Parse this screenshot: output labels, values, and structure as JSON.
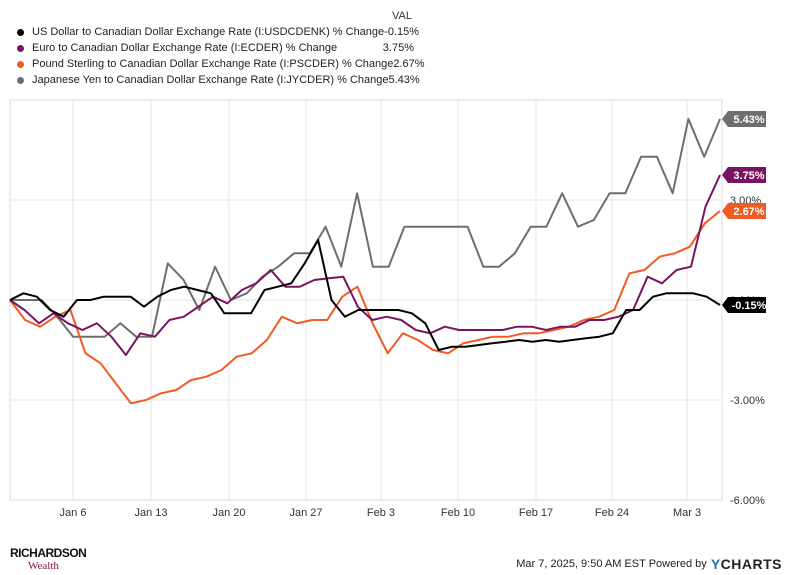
{
  "legend": {
    "header": "VAL",
    "items": [
      {
        "label": "US Dollar to Canadian Dollar Exchange Rate (I:USDCDENK) % Change",
        "value": "-0.15%",
        "color": "#000000"
      },
      {
        "label": "Euro to Canadian Dollar Exchange Rate (I:ECDER) % Change",
        "value": "3.75%",
        "color": "#7b1460"
      },
      {
        "label": "Pound Sterling to Canadian Dollar Exchange Rate (I:PSCDER) % Change",
        "value": "2.67%",
        "color": "#f15a22"
      },
      {
        "label": "Japanese Yen to Canadian Dollar Exchange Rate (I:JYCDER) % Change",
        "value": "5.43%",
        "color": "#6e6e6e"
      }
    ]
  },
  "footer": {
    "logo_line1": "RICHARDSON",
    "logo_line2": "Wealth",
    "timestamp": "Mar 7, 2025, 9:50 AM EST Powered by",
    "brand_y": "Y",
    "brand_rest": "CHARTS"
  },
  "chart_data": {
    "type": "line",
    "x_tick_labels": [
      "Jan 6",
      "Jan 13",
      "Jan 20",
      "Jan 27",
      "Feb 3",
      "Feb 10",
      "Feb 17",
      "Feb 24",
      "Mar 3"
    ],
    "y_tick_labels": [
      "3.00%",
      "0.00%",
      "-3.00%",
      "-6.00%"
    ],
    "y_ticks": [
      3,
      0,
      -3,
      -6
    ],
    "ylim": [
      -6,
      6
    ],
    "grid": true,
    "series": [
      {
        "name": "US Dollar to Canadian Dollar Exchange Rate (I:USDCDENK) % Change",
        "color": "#000000",
        "end_label": "-0.15%",
        "values": [
          0,
          0.2,
          0.1,
          -0.3,
          -0.5,
          0,
          0,
          0.1,
          0.1,
          0.1,
          -0.2,
          0.1,
          0.3,
          0.4,
          0.3,
          0.2,
          -0.4,
          -0.4,
          -0.4,
          0.3,
          0.4,
          0.5,
          1.1,
          1.8,
          0,
          -0.5,
          -0.3,
          -0.3,
          -0.3,
          -0.3,
          -0.4,
          -0.7,
          -1.5,
          -1.4,
          -1.4,
          -1.35,
          -1.3,
          -1.25,
          -1.2,
          -1.25,
          -1.2,
          -1.25,
          -1.2,
          -1.15,
          -1.1,
          -1.0,
          -0.3,
          -0.3,
          0.1,
          0.2,
          0.2,
          0.2,
          0.1,
          -0.15
        ],
        "end_value": -0.15
      },
      {
        "name": "Euro to Canadian Dollar Exchange Rate (I:ECDER) % Change",
        "color": "#7b1460",
        "end_label": "3.75%",
        "values": [
          0,
          -0.3,
          -0.7,
          -0.4,
          -0.7,
          -0.9,
          -0.7,
          -1.1,
          -1.65,
          -1.0,
          -1.1,
          -0.6,
          -0.5,
          -0.2,
          0.1,
          -0.1,
          0.3,
          0.5,
          0.9,
          0.4,
          0.4,
          0.6,
          0.65,
          0.7,
          -0.2,
          -0.6,
          -0.5,
          -0.6,
          -0.9,
          -1.0,
          -0.8,
          -0.9,
          -0.9,
          -0.9,
          -0.9,
          -0.8,
          -0.8,
          -0.9,
          -0.8,
          -0.8,
          -0.6,
          -0.6,
          -0.5,
          -0.3,
          0.7,
          0.5,
          0.9,
          1.0,
          2.8,
          3.75
        ],
        "end_value": 3.75
      },
      {
        "name": "Pound Sterling to Canadian Dollar Exchange Rate (I:PSCDER) % Change",
        "color": "#f15a22",
        "end_label": "2.67%",
        "values": [
          0,
          -0.6,
          -0.8,
          -0.5,
          -0.3,
          -1.6,
          -1.9,
          -2.5,
          -3.1,
          -3.0,
          -2.8,
          -2.7,
          -2.4,
          -2.3,
          -2.1,
          -1.7,
          -1.6,
          -1.2,
          -0.5,
          -0.7,
          -0.6,
          -0.6,
          0.1,
          0.4,
          -0.7,
          -1.6,
          -1.0,
          -1.2,
          -1.5,
          -1.6,
          -1.3,
          -1.2,
          -1.1,
          -1.1,
          -1.0,
          -1.0,
          -0.9,
          -0.8,
          -0.6,
          -0.5,
          -0.3,
          0.8,
          0.9,
          1.3,
          1.4,
          1.6,
          2.3,
          2.67
        ],
        "end_value": 2.67
      },
      {
        "name": "Japanese Yen to Canadian Dollar Exchange Rate (I:JYCDER) % Change",
        "color": "#6e6e6e",
        "end_label": "5.43%",
        "values": [
          0,
          0,
          0,
          -0.5,
          -1.1,
          -1.1,
          -1.1,
          -0.7,
          -1.1,
          -1.1,
          1.1,
          0.6,
          -0.3,
          1.0,
          0,
          0.2,
          0.7,
          1.0,
          1.4,
          1.4,
          2.2,
          1.0,
          3.2,
          1.0,
          1.0,
          2.2,
          2.2,
          2.2,
          2.2,
          2.2,
          1.0,
          1.0,
          1.4,
          2.2,
          2.2,
          3.2,
          2.2,
          2.4,
          3.2,
          3.2,
          4.3,
          4.3,
          3.2,
          5.43,
          4.3,
          5.43
        ],
        "end_value": 5.43
      }
    ]
  }
}
